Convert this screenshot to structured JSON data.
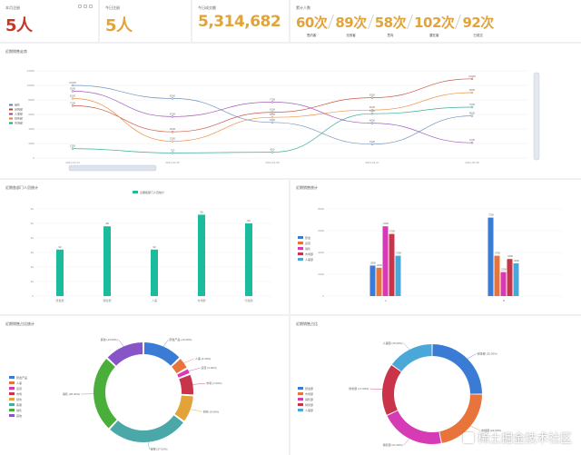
{
  "stats": [
    {
      "title": "本月注册",
      "value": "5人",
      "color": "#c0392b"
    },
    {
      "title": "今日注册",
      "value": "5人",
      "color": "#e2a33a"
    },
    {
      "title": "今日成交额",
      "value": "5,314,682",
      "color": "#e2a33a"
    }
  ],
  "counts_panel": {
    "title": "累计人数",
    "items": [
      {
        "value": "60次",
        "label": "签约客"
      },
      {
        "value": "89次",
        "label": "无效客"
      },
      {
        "value": "58次",
        "label": "意向"
      },
      {
        "value": "102次",
        "label": "潜在客"
      },
      {
        "value": "92次",
        "label": "已成交"
      }
    ]
  },
  "line_panel": {
    "title": "近期销售走势"
  },
  "bar_panel": {
    "title": "近期各部门人员统计",
    "legend": "近期各部门人员统计"
  },
  "grouped_panel": {
    "title": "近期销售统计"
  },
  "donut1_panel": {
    "title": "近期销售占比统计"
  },
  "donut2_panel": {
    "title": "近期销售占比"
  },
  "watermark": {
    "text": "稀土掘金技术社区"
  },
  "colors": {
    "teal": "#1abc9c",
    "blue": "#3a7bd5",
    "orange": "#e8743b",
    "pink": "#d63ab5",
    "red": "#c9344a",
    "sky": "#4aa8d8"
  },
  "chart_data": [
    {
      "type": "line",
      "x": [
        "2021-01-04",
        "2021-01-05",
        "2021-01-06",
        "2021-01-07",
        "2021-01-08"
      ],
      "ylim": [
        0,
        12000
      ],
      "yticks": [
        "0",
        "2000",
        "4000",
        "6000",
        "8000",
        "10000",
        "12000"
      ],
      "series": [
        {
          "name": "销售",
          "color": "#5b7fb5",
          "values": [
            10000,
            8200,
            4900,
            1900,
            5800
          ]
        },
        {
          "name": "采购部",
          "color": "#c0392b",
          "values": [
            7200,
            3600,
            6300,
            8300,
            10900
          ]
        },
        {
          "name": "人事部",
          "color": "#8e44ad",
          "values": [
            9200,
            5700,
            7700,
            4800,
            2100
          ]
        },
        {
          "name": "财务部",
          "color": "#e67e22",
          "values": [
            8200,
            2300,
            5600,
            6600,
            9000
          ]
        },
        {
          "name": "市场部",
          "color": "#16a085",
          "values": [
            1300,
            700,
            800,
            6100,
            7000
          ]
        }
      ]
    },
    {
      "type": "bar",
      "categories": [
        "研发部",
        "销售部",
        "人事",
        "市场部",
        "行政部"
      ],
      "values": [
        32,
        48,
        32,
        56,
        50
      ],
      "ylim": [
        0,
        60
      ],
      "yticks": [
        "0",
        "10",
        "20",
        "30",
        "40",
        "50",
        "60"
      ]
    },
    {
      "type": "bar",
      "categories": [
        "A",
        "B"
      ],
      "ylim": [
        0,
        8000
      ],
      "yticks": [
        "0",
        "2000",
        "4000",
        "6000",
        "8000"
      ],
      "series": [
        {
          "name": "研发",
          "color": "#3a7bd5",
          "values": [
            2800,
            7200
          ]
        },
        {
          "name": "运营",
          "color": "#e8743b",
          "values": [
            2600,
            3700
          ]
        },
        {
          "name": "销售",
          "color": "#d63ab5",
          "values": [
            6400,
            2200
          ]
        },
        {
          "name": "市场部",
          "color": "#c9344a",
          "values": [
            5700,
            3400
          ]
        },
        {
          "name": "人事部",
          "color": "#4aa8d8",
          "values": [
            3700,
            3000
          ]
        }
      ]
    },
    {
      "type": "pie",
      "series": [
        {
          "name": "研发产品",
          "color": "#3a7bd5",
          "value": 13
        },
        {
          "name": "人事",
          "color": "#e8743b",
          "value": 4
        },
        {
          "name": "运营",
          "color": "#d63ab5",
          "value": 2
        },
        {
          "name": "市场",
          "color": "#c9344a",
          "value": 7
        },
        {
          "name": "财务",
          "color": "#e2a33a",
          "value": 9
        },
        {
          "name": "客服",
          "color": "#4aa8a8",
          "value": 27
        },
        {
          "name": "销售",
          "color": "#4aae3a",
          "value": 25
        },
        {
          "name": "其他",
          "color": "#8855c8",
          "value": 13
        }
      ]
    },
    {
      "type": "pie",
      "series": [
        {
          "name": "研发部",
          "color": "#3a7bd5",
          "value": 25
        },
        {
          "name": "市场部",
          "color": "#e8743b",
          "value": 22
        },
        {
          "name": "销售部",
          "color": "#d63ab5",
          "value": 21
        },
        {
          "name": "财务部",
          "color": "#c9344a",
          "value": 17
        },
        {
          "name": "人事部",
          "color": "#4aa8d8",
          "value": 15
        }
      ]
    }
  ]
}
